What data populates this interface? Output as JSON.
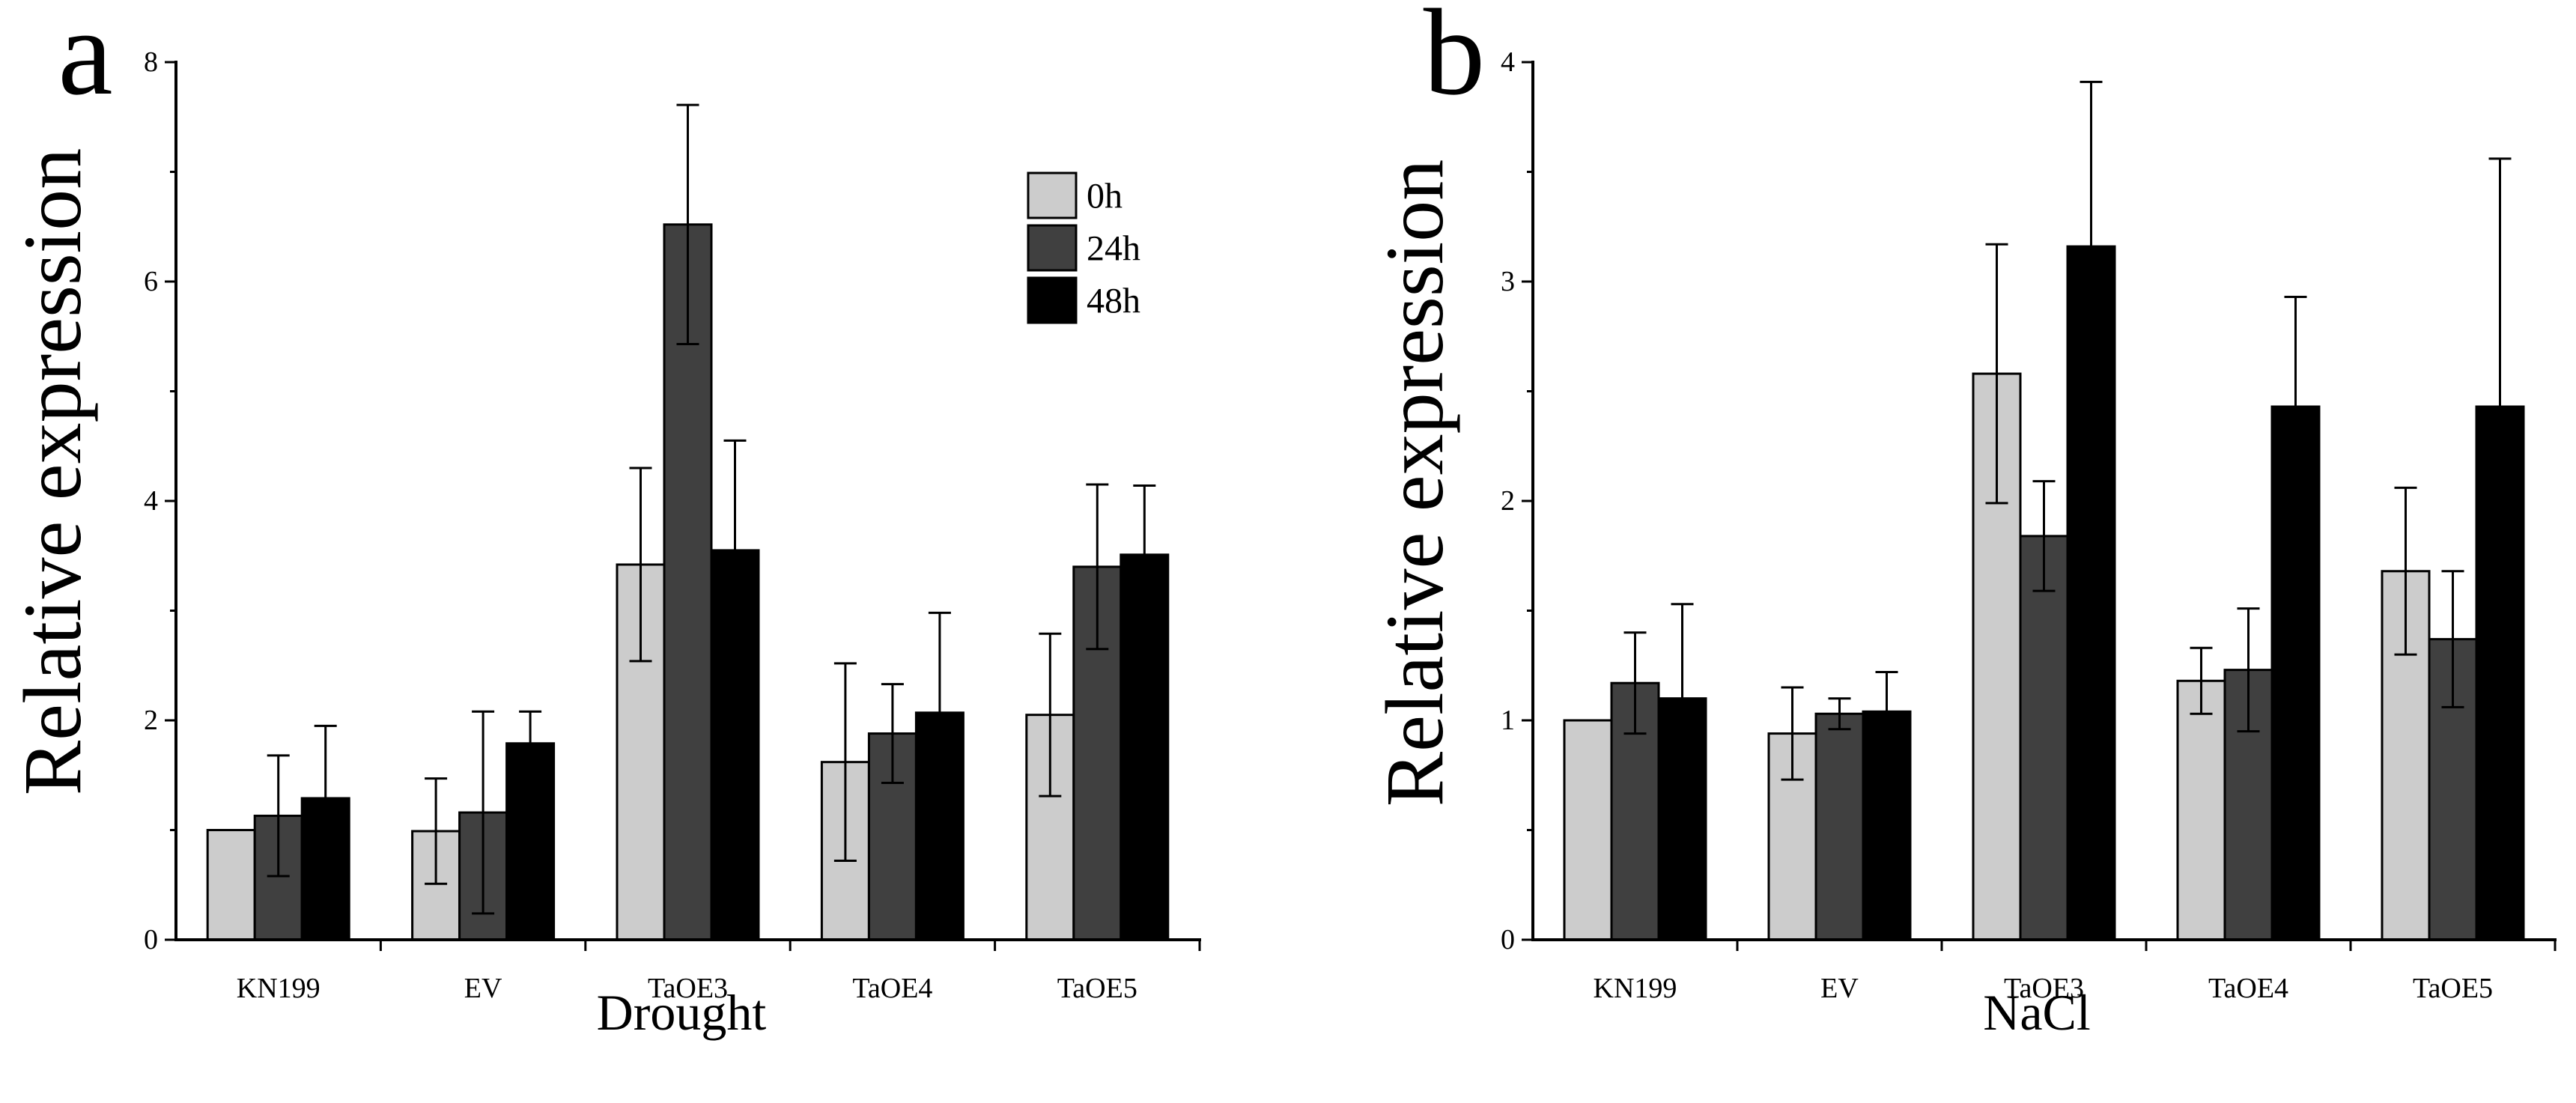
{
  "chart_data": [
    {
      "panel_label": "a",
      "type": "bar",
      "title": "",
      "xlabel": "Drought",
      "ylabel": "Relative expression",
      "categories": [
        "KN199",
        "EV",
        "TaOE3",
        "TaOE4",
        "TaOE5"
      ],
      "ylim": [
        0,
        8
      ],
      "yticks": [
        0,
        2,
        4,
        6,
        8
      ],
      "grid": false,
      "legend": "top-right",
      "series": [
        {
          "name": "0h",
          "color": "#cccccc",
          "values": [
            1.0,
            0.99,
            3.42,
            1.62,
            2.05
          ],
          "errors": [
            0,
            0.48,
            0.88,
            0.9,
            0.74
          ]
        },
        {
          "name": "24h",
          "color": "#404040",
          "values": [
            1.13,
            1.16,
            6.52,
            1.88,
            3.4
          ],
          "errors": [
            0.55,
            0.92,
            1.09,
            0.45,
            0.75
          ]
        },
        {
          "name": "48h",
          "color": "#000000",
          "values": [
            1.29,
            1.79,
            3.55,
            2.07,
            3.51
          ],
          "errors": [
            0.66,
            0.29,
            1.0,
            0.91,
            0.63
          ]
        }
      ]
    },
    {
      "panel_label": "b",
      "type": "bar",
      "title": "",
      "xlabel": "NaCl",
      "ylabel": "Relative expression",
      "categories": [
        "KN199",
        "EV",
        "TaOE3",
        "TaOE4",
        "TaOE5"
      ],
      "ylim": [
        0,
        4
      ],
      "yticks": [
        0,
        1,
        2,
        3,
        4
      ],
      "grid": false,
      "legend": null,
      "series": [
        {
          "color": "#cccccc",
          "values": [
            1.0,
            0.94,
            2.58,
            1.18,
            1.68
          ],
          "errors": [
            0,
            0.21,
            0.59,
            0.15,
            0.38
          ]
        },
        {
          "color": "#404040",
          "values": [
            1.17,
            1.03,
            1.84,
            1.23,
            1.37
          ],
          "errors": [
            0.23,
            0.07,
            0.25,
            0.28,
            0.31
          ]
        },
        {
          "color": "#000000",
          "values": [
            1.1,
            1.04,
            3.16,
            2.43,
            2.43
          ],
          "errors": [
            0.43,
            0.18,
            0.75,
            0.5,
            1.13
          ]
        }
      ]
    }
  ]
}
